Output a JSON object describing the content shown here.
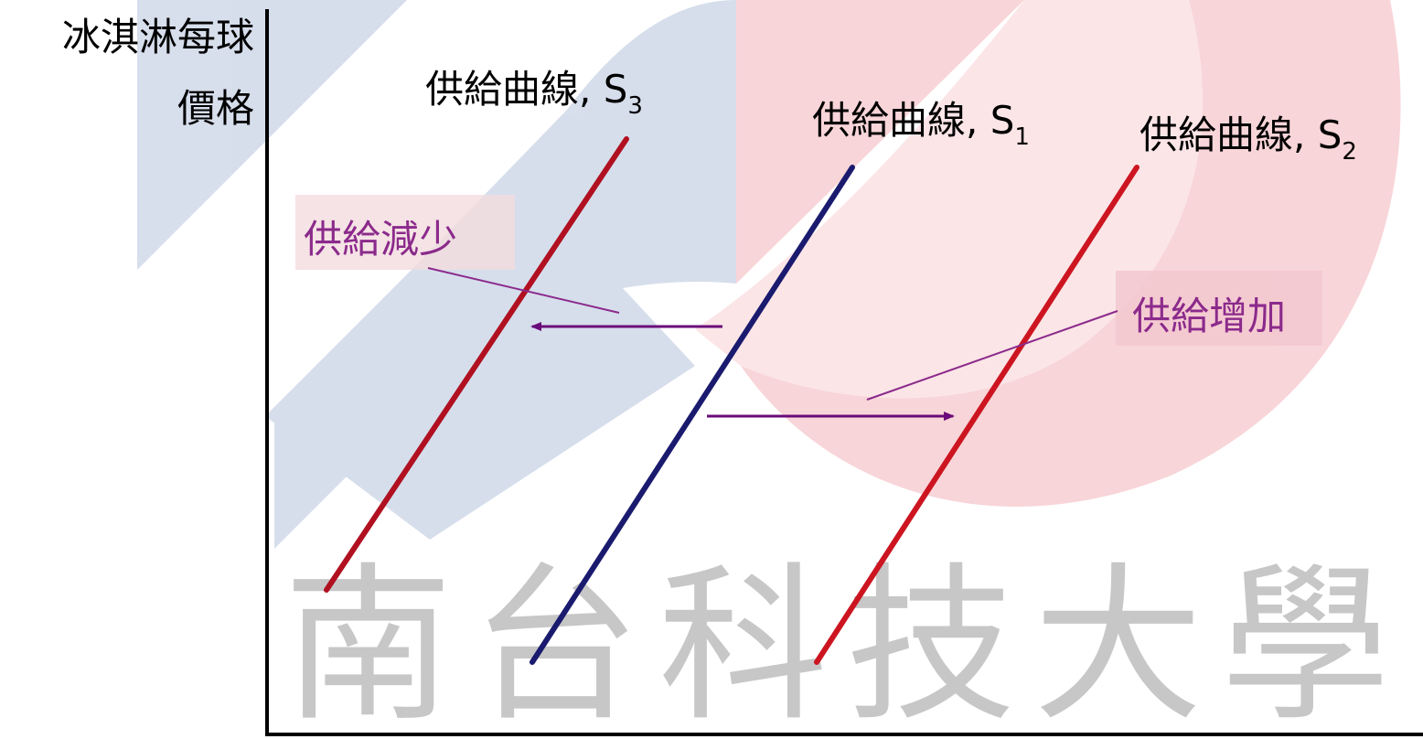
{
  "chart_data": {
    "type": "line",
    "title": "",
    "ylabel_lines": [
      "冰淇淋每球",
      "價格"
    ],
    "xlabel": "",
    "series": [
      {
        "name": "供給曲線, S",
        "subscript": "3",
        "color": "#b01020"
      },
      {
        "name": "供給曲線, S",
        "subscript": "1",
        "color": "#1a1a6e"
      },
      {
        "name": "供給曲線, S",
        "subscript": "2",
        "color": "#cc1520"
      }
    ],
    "annotations": [
      {
        "text": "供給減少",
        "color": "#8b2a8b"
      },
      {
        "text": "供給增加",
        "color": "#8b2a8b"
      }
    ],
    "arrow_color": "#6a0a7a",
    "grid": false
  },
  "watermark": {
    "text": "南台科技大學",
    "colors": {
      "blue": "#c9d3e6",
      "pink": "#f6c7cc",
      "gray": "#9a9a9a"
    }
  }
}
